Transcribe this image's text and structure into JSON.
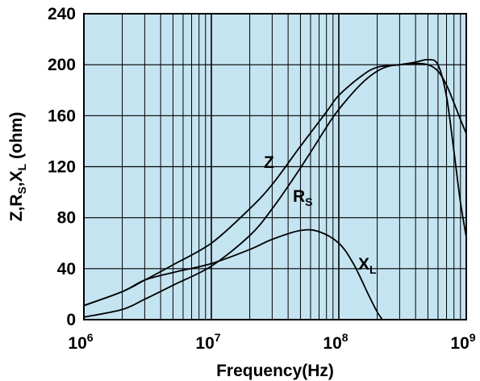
{
  "chart_data": {
    "type": "line",
    "title": "",
    "xlabel": "Frequency(Hz)",
    "ylabel": {
      "text": "Z,R",
      "s": "S",
      "mid": ",X",
      "l": "L",
      "unit": " (ohm)"
    },
    "x_scale": "log",
    "xlim": [
      1000000,
      1000000000
    ],
    "ylim": [
      0,
      240
    ],
    "grid": true,
    "plot_background": "#c5e4f1",
    "x_ticks": [
      {
        "base": "10",
        "exp": "6",
        "value": 1000000
      },
      {
        "base": "10",
        "exp": "7",
        "value": 10000000
      },
      {
        "base": "10",
        "exp": "8",
        "value": 100000000
      },
      {
        "base": "10",
        "exp": "9",
        "value": 1000000000
      }
    ],
    "y_ticks": [
      {
        "label": "0",
        "value": 0
      },
      {
        "label": "40",
        "value": 40
      },
      {
        "label": "80",
        "value": 80
      },
      {
        "label": "120",
        "value": 120
      },
      {
        "label": "160",
        "value": 160
      },
      {
        "label": "200",
        "value": 200
      },
      {
        "label": "240",
        "value": 240
      }
    ],
    "series": [
      {
        "label": {
          "main": "Z",
          "sub": ""
        },
        "x": [
          1000000,
          2000000,
          3000000,
          5000000,
          10000000,
          20000000,
          30000000,
          50000000,
          80000000,
          100000000,
          150000000,
          200000000,
          300000000,
          400000000,
          500000000,
          600000000,
          700000000,
          800000000,
          900000000,
          1000000000
        ],
        "y": [
          11,
          22,
          31,
          43,
          60,
          87,
          106,
          136,
          163,
          176,
          191,
          198,
          200,
          201,
          200,
          195,
          184,
          170,
          157,
          146
        ]
      },
      {
        "label": {
          "main": "R",
          "sub": "S"
        },
        "x": [
          1000000,
          2000000,
          3000000,
          5000000,
          10000000,
          20000000,
          30000000,
          50000000,
          80000000,
          100000000,
          150000000,
          200000000,
          250000000,
          300000000,
          400000000,
          500000000,
          600000000,
          700000000,
          800000000,
          900000000,
          1000000000
        ],
        "y": [
          2,
          8,
          16,
          27,
          42,
          66,
          87,
          119,
          151,
          165,
          185,
          195,
          199,
          200,
          202,
          204,
          200,
          175,
          132,
          92,
          65
        ]
      },
      {
        "label": {
          "main": "X",
          "sub": "L"
        },
        "x": [
          1000000,
          2000000,
          3000000,
          5000000,
          10000000,
          20000000,
          30000000,
          50000000,
          70000000,
          100000000,
          130000000,
          170000000,
          200000000,
          220000000
        ],
        "y": [
          11,
          22,
          31,
          37,
          44,
          55,
          63,
          70,
          69,
          60,
          44,
          20,
          6,
          0
        ]
      }
    ]
  }
}
